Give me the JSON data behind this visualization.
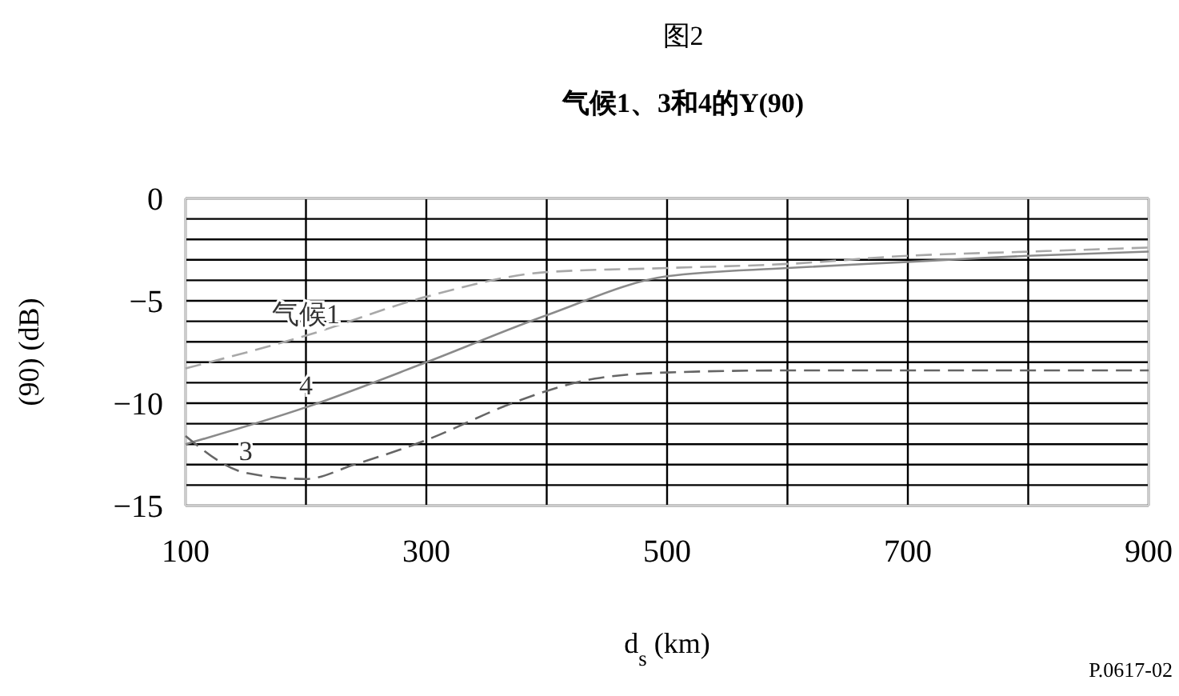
{
  "chart_data": {
    "type": "line",
    "title": "图2",
    "subtitle": "气候1、3和4的Y(90)",
    "xlabel": "d$_{s}$ (km)",
    "ylabel": "(90) (dB)",
    "annotations": [
      "P.0617-02"
    ],
    "xlim": [
      100,
      900
    ],
    "ylim": [
      -15,
      0
    ],
    "xticks": [
      100,
      {
        "value": 200,
        "label": null
      },
      300,
      {
        "value": 400,
        "label": null
      },
      500,
      {
        "value": 600,
        "label": null
      },
      700,
      {
        "value": 800,
        "label": null
      },
      900
    ],
    "yticks": [
      0,
      {
        "value": -1,
        "label": null
      },
      {
        "value": -2,
        "label": null
      },
      {
        "value": -3,
        "label": null
      },
      {
        "value": -4,
        "label": null
      },
      -5,
      {
        "value": -6,
        "label": null
      },
      {
        "value": -7,
        "label": null
      },
      {
        "value": -8,
        "label": null
      },
      {
        "value": -9,
        "label": null
      },
      -10,
      {
        "value": -11,
        "label": null
      },
      {
        "value": -12,
        "label": null
      },
      {
        "value": -13,
        "label": null
      },
      {
        "value": -14,
        "label": null
      },
      -15
    ],
    "grid": true,
    "series": [
      {
        "name": "气候1",
        "color": "#a8a8a8",
        "line_style": "dashed",
        "x": [
          100,
          200,
          300,
          400,
          500,
          600,
          700,
          800,
          900
        ],
        "values": [
          -8.3,
          -6.7,
          -4.8,
          -3.6,
          -3.4,
          -3.2,
          -2.8,
          -2.6,
          -2.4
        ]
      },
      {
        "name": "4",
        "color": "#8a8a8a",
        "line_style": "solid",
        "x": [
          100,
          200,
          300,
          400,
          500,
          600,
          700,
          800,
          900
        ],
        "values": [
          -12.0,
          -10.2,
          -8.0,
          -5.7,
          -3.8,
          -3.4,
          -3.1,
          -2.8,
          -2.6
        ]
      },
      {
        "name": "3",
        "color": "#666666",
        "line_style": "dashed",
        "x": [
          100,
          150,
          200,
          240,
          300,
          367,
          400,
          440,
          500,
          600,
          700,
          800,
          900
        ],
        "values": [
          -11.6,
          -13.4,
          -13.7,
          -13.0,
          -11.8,
          -10.1,
          -9.4,
          -8.8,
          -8.5,
          -8.4,
          -8.4,
          -8.4,
          -8.4
        ]
      }
    ]
  }
}
